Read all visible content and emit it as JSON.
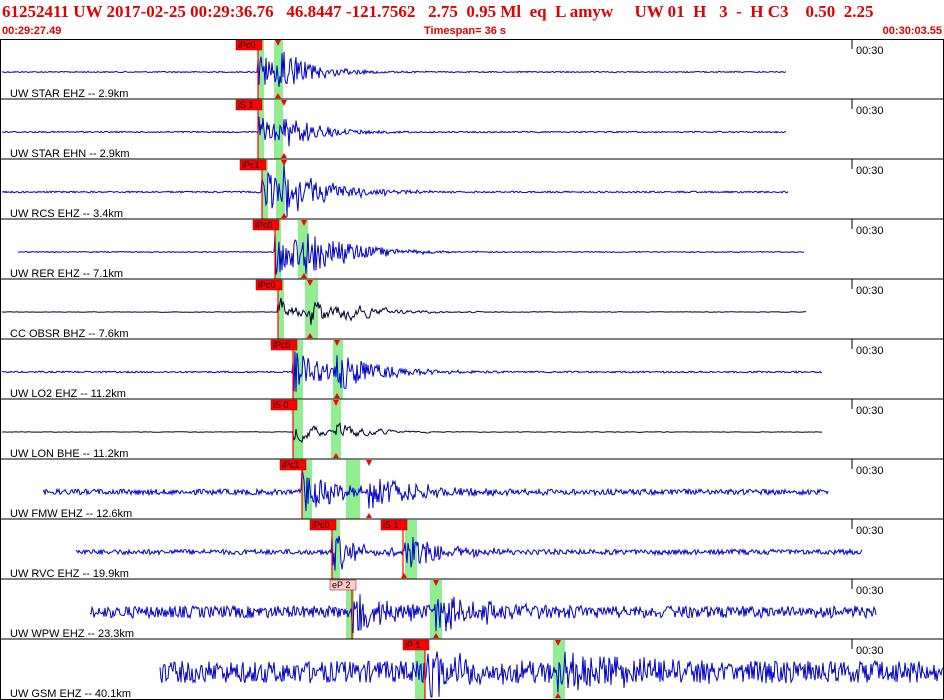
{
  "header": {
    "title": "61252411 UW 2017-02-25 00:29:36.76   46.8447 -121.7562   2.75  0.95 Ml  eq  L amyw     UW 01  H   3  -  H C3    0.50  2.25",
    "start_time": "00:29:27.49",
    "timespan": "Timespan=  36 s",
    "end_time": "00:30:03.55"
  },
  "colors": {
    "header_red": "#e00000",
    "trace_blue": "#0000cc",
    "trace_dark": "#000033",
    "pick_red": "#ff0000",
    "phase_window_green": "#90ee90"
  },
  "traces": [
    {
      "label": "UW STAR EHZ -- 2.9km",
      "tick_label": "00:30",
      "pick": "iPc0",
      "color": "blue"
    },
    {
      "label": "UW STAR EHN -- 2.9km",
      "tick_label": "00:30",
      "pick": "iS 1",
      "color": "blue"
    },
    {
      "label": "UW RCS EHZ -- 3.4km",
      "tick_label": "00:30",
      "pick": "iPc1",
      "color": "blue"
    },
    {
      "label": "UW RER EHZ -- 7.1km",
      "tick_label": "00:30",
      "pick": "iPc0",
      "color": "blue"
    },
    {
      "label": "CC OBSR BHZ -- 7.6km",
      "tick_label": "00:30",
      "pick": "iPc0",
      "color": "dark"
    },
    {
      "label": "UW LO2 EHZ -- 11.2km",
      "tick_label": "00:30",
      "pick": "iPc0",
      "color": "blue"
    },
    {
      "label": "UW LON BHE -- 11.2km",
      "tick_label": "00:30",
      "pick": "iS 0",
      "color": "dark"
    },
    {
      "label": "UW FMW EHZ -- 12.6km",
      "tick_label": "00:30",
      "pick": "iPc1",
      "color": "blue"
    },
    {
      "label": "UW RVC EHZ -- 19.9km",
      "tick_label": "00:30",
      "pick": "iPc0",
      "pick2": "iS 1",
      "color": "blue"
    },
    {
      "label": "UW WPW EHZ -- 23.3km",
      "tick_label": "00:30",
      "pick": "eP 2",
      "color": "blue"
    },
    {
      "label": "UW GSM EHZ -- 40.1km",
      "tick_label": "00:30",
      "pick": "iP 1",
      "color": "blue"
    }
  ]
}
